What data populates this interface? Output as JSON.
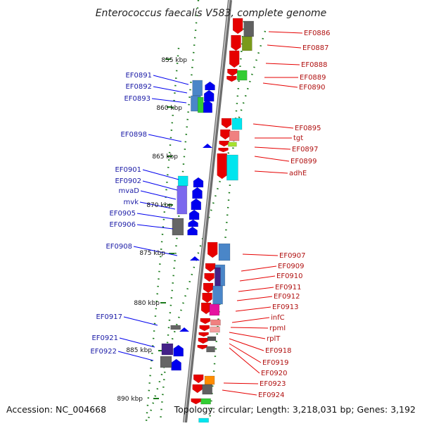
{
  "title": "Enterococcus faecalis V583, complete genome",
  "footer": {
    "accession": "Accession: NC_004668",
    "summary": "Topology: circular; Length: 3,218,031 bp; Genes: 3,192"
  },
  "kbp_labels": [
    "855 kbp",
    "860 kbp",
    "865 kbp",
    "870 kbp",
    "875 kbp",
    "880 kbp",
    "885 kbp",
    "890 kbp"
  ],
  "left_genes": [
    "EF0891",
    "EF0892",
    "EF0893",
    "EF0898",
    "EF0901",
    "EF0902",
    "mvaD",
    "mvk",
    "EF0905",
    "EF0906",
    "EF0908",
    "EF0917",
    "EF0921",
    "EF0922"
  ],
  "right_genes": [
    "EF0886",
    "EF0887",
    "EF0888",
    "EF0889",
    "EF0890",
    "EF0895",
    "tgt",
    "EF0897",
    "EF0899",
    "adhE",
    "EF0907",
    "EF0909",
    "EF0910",
    "EF0911",
    "EF0912",
    "EF0913",
    "infC",
    "rpmI",
    "rplT",
    "EF0918",
    "EF0919",
    "EF0920",
    "EF0923",
    "EF0924"
  ],
  "colors": {
    "forward_strand": "#e60000",
    "reverse_strand": "#0000ee",
    "backbone": "#8a8a8a",
    "tick": "#1a7a1a",
    "left_label": "#1a1aa6",
    "right_label": "#b01010"
  }
}
